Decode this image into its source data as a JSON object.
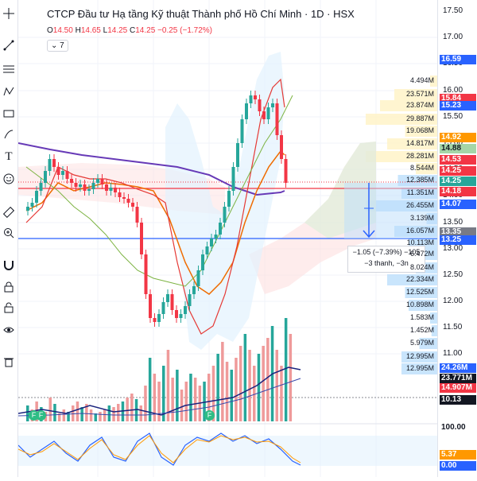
{
  "header": {
    "title": "CTCP Đầu tư Hạ tầng Kỹ thuật Thành phố Hồ Chí Minh · 1D · HSX",
    "ohlc": {
      "o_label": "O",
      "o": "14.50",
      "h_label": "H",
      "h": "14.65",
      "l_label": "L",
      "l": "14.25",
      "c_label": "C",
      "c": "14.25",
      "change": "−0.25 (−1.72%)"
    },
    "indicators_button": "7"
  },
  "toolbar": {
    "icons": [
      "crosshair-icon",
      "trendline-icon",
      "fib-icon",
      "brush-icon",
      "pattern-icon",
      "prediction-icon",
      "text-icon",
      "emoji-icon",
      "ruler-icon",
      "zoom-icon",
      "magnet-icon",
      "lock-icon",
      "eye-icon",
      "trash-icon"
    ]
  },
  "price_axis": {
    "ticks": [
      "17.50",
      "17.00",
      "16.50",
      "16.00",
      "15.50",
      "15.00",
      "14.50",
      "14.00",
      "13.50",
      "13.00",
      "12.50",
      "12.00",
      "11.50",
      "11.00"
    ],
    "labels": [
      {
        "text": "16.59",
        "color": "#2962ff"
      },
      {
        "text": "15.84",
        "color": "#f23645"
      },
      {
        "text": "15.23",
        "color": "#2962ff"
      },
      {
        "text": "14.92",
        "color": "#ff9800"
      },
      {
        "text": "14.88",
        "color": "#a5d6a7"
      },
      {
        "text": "14.53",
        "color": "#f23645"
      },
      {
        "text": "14.25",
        "color": "#f23645"
      },
      {
        "text": "14.25",
        "color": "#26a69a"
      },
      {
        "text": "14.18",
        "color": "#f23645"
      },
      {
        "text": "14.07",
        "color": "#2962ff"
      },
      {
        "text": "13.35",
        "color": "#787b86"
      },
      {
        "text": "13.25",
        "color": "#2962ff"
      },
      {
        "text": "24.26M",
        "color": "#2962ff"
      },
      {
        "text": "23.771M",
        "color": "#131722"
      },
      {
        "text": "14.907M",
        "color": "#f23645"
      },
      {
        "text": "10.13",
        "color": "#131722"
      },
      {
        "text": "100.00",
        "color": "#ffffff"
      },
      {
        "text": "5.37",
        "color": "#ff9800"
      },
      {
        "text": "0.00",
        "color": "#2962ff"
      }
    ]
  },
  "volume_profile_labels": [
    "4.494M",
    "23.571M",
    "23.874M",
    "29.887M",
    "19.068M",
    "14.817M",
    "28.281M",
    "8.544M",
    "12.385M",
    "11.351M",
    "26.455M",
    "3.139M",
    "16.057M",
    "10.113M",
    "6.472M",
    "8.024M",
    "22.334M",
    "12.525M",
    "10.898M",
    "1.583M",
    "1.452M",
    "5.979M",
    "12.995M",
    "12.995M"
  ],
  "measure_tooltip": {
    "line1": "−1.05 (−7.39%) −105",
    "line2": "−3 thanh, −3n"
  },
  "markers": {
    "f_label": "F"
  },
  "colors": {
    "up": "#26a69a",
    "down": "#f23645",
    "accent": "#2962ff"
  }
}
